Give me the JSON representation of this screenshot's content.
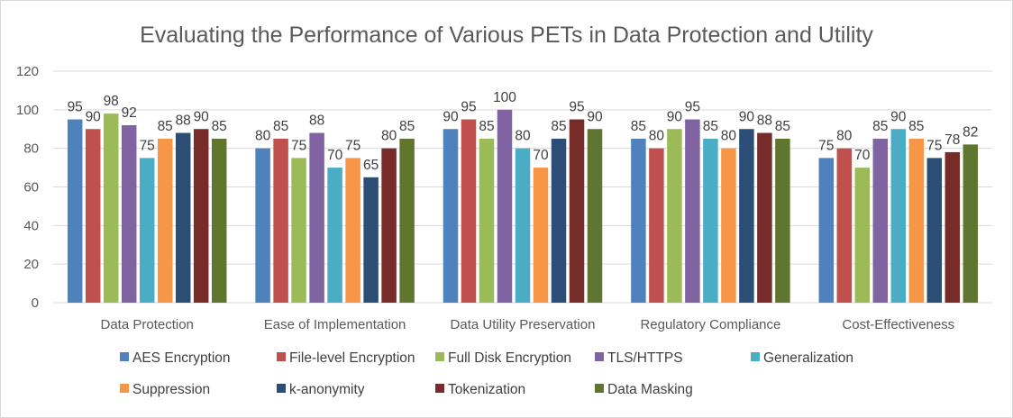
{
  "chart_data": {
    "type": "bar",
    "title": "Evaluating the Performance of Various PETs in Data Protection and Utility",
    "categories": [
      "Data Protection",
      "Ease of Implementation",
      "Data Utility Preservation",
      "Regulatory Compliance",
      "Cost-Effectiveness"
    ],
    "series": [
      {
        "name": "AES Encryption",
        "color": "#4f81bd",
        "values": [
          95,
          80,
          90,
          85,
          75
        ]
      },
      {
        "name": "File-level Encryption",
        "color": "#c0504d",
        "values": [
          90,
          85,
          95,
          80,
          80
        ]
      },
      {
        "name": "Full Disk Encryption",
        "color": "#9bbb59",
        "values": [
          98,
          75,
          85,
          90,
          70
        ]
      },
      {
        "name": "TLS/HTTPS",
        "color": "#8064a2",
        "values": [
          92,
          88,
          100,
          95,
          85
        ]
      },
      {
        "name": "Generalization",
        "color": "#4bacc6",
        "values": [
          75,
          70,
          80,
          85,
          90
        ]
      },
      {
        "name": "Suppression",
        "color": "#f79646",
        "values": [
          85,
          75,
          70,
          80,
          85
        ]
      },
      {
        "name": "k-anonymity",
        "color": "#2c4d75",
        "values": [
          88,
          65,
          85,
          90,
          75
        ]
      },
      {
        "name": "Tokenization",
        "color": "#772c2a",
        "values": [
          90,
          80,
          95,
          88,
          78
        ]
      },
      {
        "name": "Data Masking",
        "color": "#5f7530",
        "values": [
          85,
          85,
          90,
          85,
          82
        ]
      }
    ],
    "ylim": [
      0,
      120
    ],
    "yticks": [
      "0",
      "20",
      "40",
      "60",
      "80",
      "100",
      "120"
    ],
    "xlabel": "",
    "ylabel": "",
    "grid": true,
    "legend_position": "bottom",
    "data_labels": true
  }
}
